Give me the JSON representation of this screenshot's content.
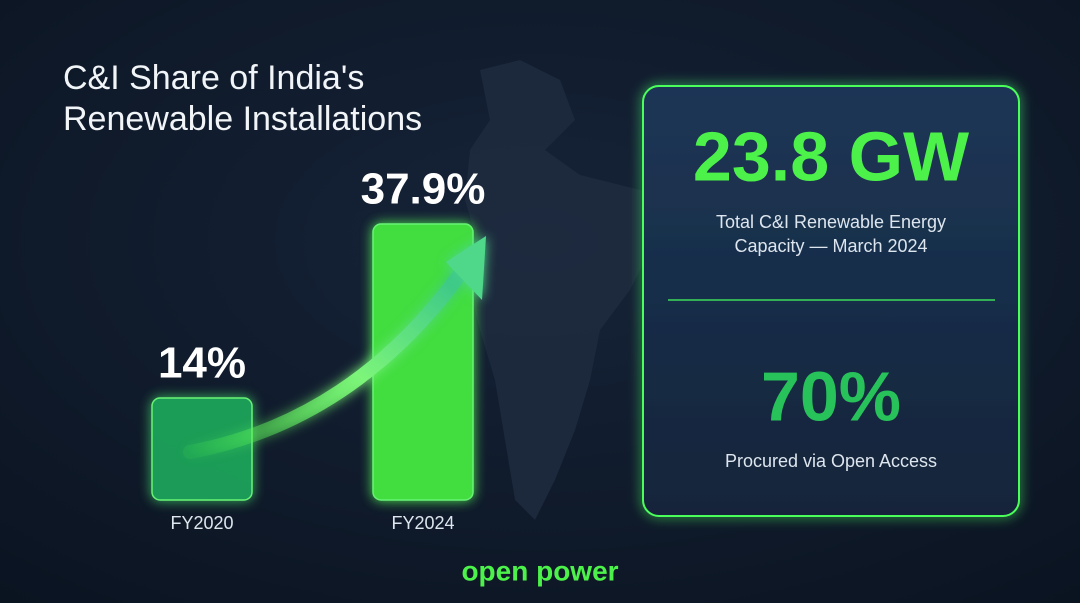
{
  "chart_data": {
    "type": "bar",
    "title": "C&I Share of India's Renewable Installations",
    "categories": [
      "FY2020",
      "FY2024"
    ],
    "values": [
      14,
      37.9
    ],
    "value_labels": [
      "14%",
      "37.9%"
    ],
    "colors": [
      "#1fa35a",
      "#45e83f"
    ]
  },
  "panel": {
    "headline": "23.8 GW",
    "headline_caption": "Total C&I Renewable Energy Capacity — March 2024",
    "secondary": "70%",
    "secondary_caption": "Procured via Open Access"
  },
  "brand": "open power"
}
